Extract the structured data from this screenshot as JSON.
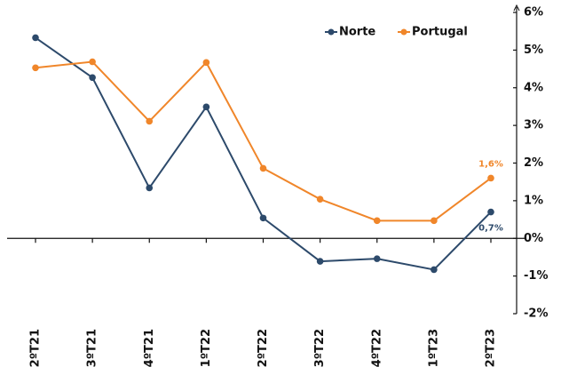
{
  "chart_data": {
    "type": "line",
    "categories": [
      "2ºT21",
      "3ºT21",
      "4ºT21",
      "1ºT22",
      "2ºT22",
      "3ºT22",
      "4ºT22",
      "1ºT23",
      "2ºT23"
    ],
    "series": [
      {
        "name": "Norte",
        "color": "#2d4a6b",
        "values": [
          5.33,
          4.27,
          1.34,
          3.49,
          0.54,
          -0.61,
          -0.54,
          -0.83,
          0.7
        ],
        "value_labels": [
          null,
          null,
          null,
          null,
          null,
          null,
          null,
          null,
          "0,7%"
        ]
      },
      {
        "name": "Portugal",
        "color": "#f0862a",
        "values": [
          4.53,
          4.69,
          3.11,
          4.67,
          1.86,
          1.04,
          0.47,
          0.47,
          1.6
        ],
        "value_labels": [
          null,
          null,
          null,
          null,
          null,
          null,
          null,
          null,
          "1,6%"
        ]
      }
    ],
    "ylim": [
      -2,
      6
    ],
    "yticks": [
      {
        "value": -2,
        "label": "-2%"
      },
      {
        "value": -1,
        "label": "-1%"
      },
      {
        "value": 0,
        "label": "0%"
      },
      {
        "value": 1,
        "label": "1%"
      },
      {
        "value": 2,
        "label": "2%"
      },
      {
        "value": 3,
        "label": "3%"
      },
      {
        "value": 4,
        "label": "4%"
      },
      {
        "value": 5,
        "label": "5%"
      },
      {
        "value": 6,
        "label": "6%"
      }
    ],
    "legend": "top-right"
  }
}
